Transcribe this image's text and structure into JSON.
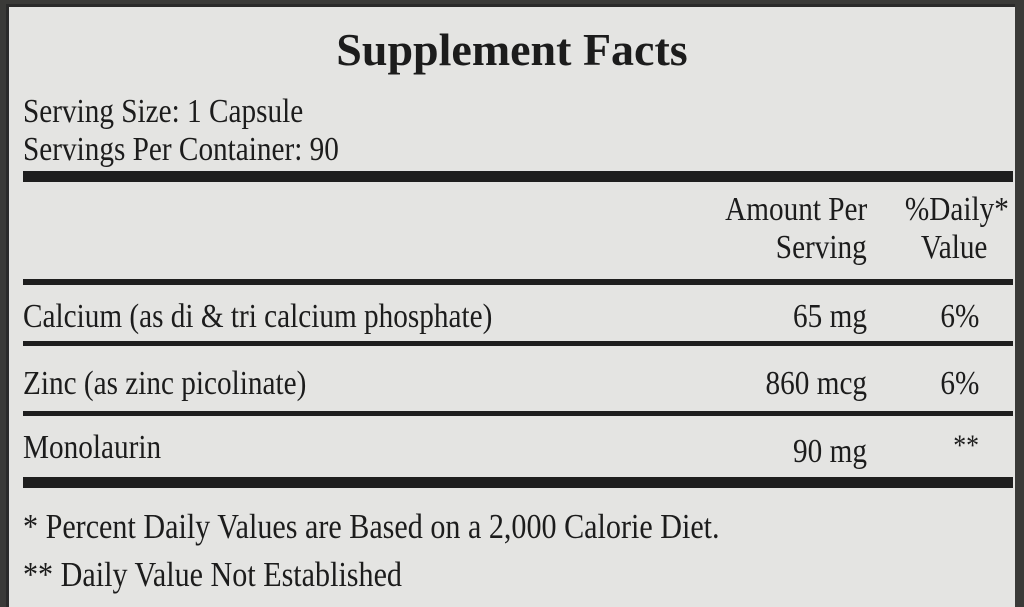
{
  "title": "Supplement Facts",
  "serving_size": "Serving Size: 1 Capsule",
  "servings_per_container": "Servings Per Container: 90",
  "headers": {
    "amount_line1": "Amount Per",
    "amount_line2": "Serving",
    "dv_line1": "%Daily*",
    "dv_line2": "Value"
  },
  "rows": [
    {
      "name": "Calcium (as di & tri calcium phosphate)",
      "amount": "65 mg",
      "dv": "6%"
    },
    {
      "name": "Zinc (as zinc picolinate)",
      "amount": "860 mcg",
      "dv": "6%"
    },
    {
      "name": "Monolaurin",
      "amount": "90 mg",
      "dv": "**"
    }
  ],
  "footnotes": [
    "* Percent Daily Values are Based on a 2,000 Calorie Diet.",
    "** Daily Value Not Established"
  ]
}
